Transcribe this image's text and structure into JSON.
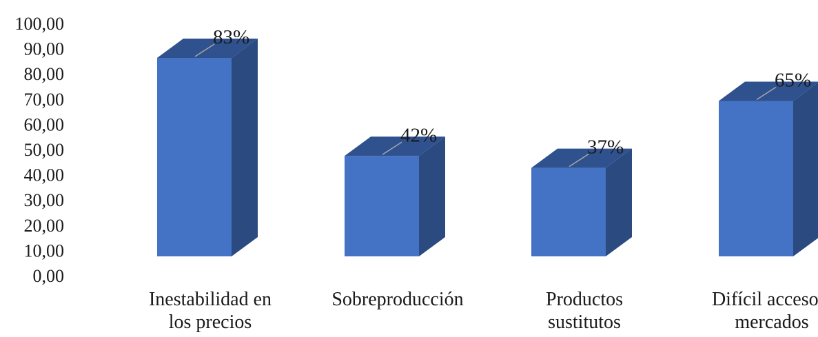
{
  "chart_data": {
    "type": "bar",
    "categories": [
      [
        "Inestabilidad en",
        "los precios"
      ],
      [
        "Sobreproducción"
      ],
      [
        "Productos",
        "sustitutos"
      ],
      [
        "Difícil acceso a",
        "mercados"
      ]
    ],
    "values": [
      83,
      42,
      37,
      65
    ],
    "data_labels": [
      "83%",
      "42%",
      "37%",
      "65%"
    ],
    "yticks": [
      "0,00",
      "10,00",
      "20,00",
      "30,00",
      "40,00",
      "50,00",
      "60,00",
      "70,00",
      "80,00",
      "90,00",
      "100,00"
    ],
    "ylim": [
      0,
      100
    ],
    "title": "",
    "xlabel": "",
    "ylabel": "",
    "grid": false,
    "legend": "none",
    "colors": {
      "front": "#4472C4",
      "top": "#2F528F",
      "side": "#2B4A80",
      "leader": "#A6A6A6"
    }
  }
}
